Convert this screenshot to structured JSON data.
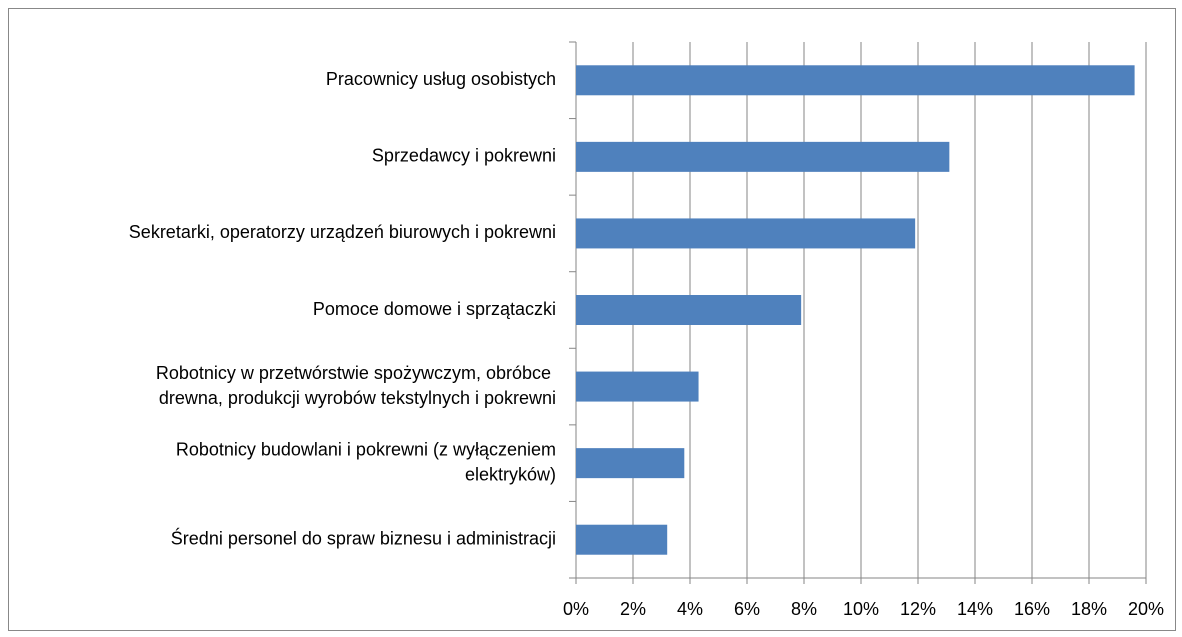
{
  "chart_data": {
    "type": "barh",
    "categories": [
      "Pracownicy usług osobistych",
      "Sprzedawcy i pokrewni",
      "Sekretarki, operatorzy urządzeń biurowych i pokrewni",
      "Pomoce domowe i sprzątaczki",
      "Robotnicy w przetwórstwie spożywczym, obróbce \ndrewna, produkcji wyrobów tekstylnych i pokrewni",
      "Robotnicy budowlani i pokrewni (z wyłączeniem\nelektryków)",
      "Średni personel do spraw  biznesu i administracji"
    ],
    "values": [
      19.6,
      13.1,
      11.9,
      7.9,
      4.3,
      3.8,
      3.2
    ],
    "color": "#4f81bd",
    "xlim": [
      0,
      20
    ],
    "xticks": [
      {
        "value": 0,
        "label": "0%"
      },
      {
        "value": 2,
        "label": "2%"
      },
      {
        "value": 4,
        "label": "4%"
      },
      {
        "value": 6,
        "label": "6%"
      },
      {
        "value": 8,
        "label": "8%"
      },
      {
        "value": 10,
        "label": "10%"
      },
      {
        "value": 12,
        "label": "12%"
      },
      {
        "value": 14,
        "label": "14%"
      },
      {
        "value": 16,
        "label": "16%"
      },
      {
        "value": 18,
        "label": "18%"
      },
      {
        "value": 20,
        "label": "20%"
      }
    ],
    "grid": true
  }
}
